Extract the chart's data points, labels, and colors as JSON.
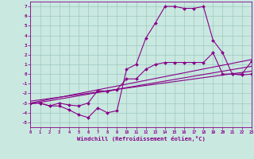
{
  "bg_color": "#c8e8e0",
  "grid_color": "#a0c8c0",
  "line_color": "#880088",
  "xlabel": "Windchill (Refroidissement éolien,°C)",
  "xlim": [
    0,
    23
  ],
  "ylim": [
    -5.5,
    7.5
  ],
  "yticks": [
    -5,
    -4,
    -3,
    -2,
    -1,
    0,
    1,
    2,
    3,
    4,
    5,
    6,
    7
  ],
  "xticks": [
    0,
    1,
    2,
    3,
    4,
    5,
    6,
    7,
    8,
    9,
    10,
    11,
    12,
    13,
    14,
    15,
    16,
    17,
    18,
    19,
    20,
    21,
    22,
    23
  ],
  "line1_x": [
    0,
    1,
    2,
    3,
    4,
    5,
    6,
    7,
    8,
    9,
    10,
    11,
    12,
    13,
    14,
    15,
    16,
    17,
    18,
    19,
    20,
    21,
    22,
    23
  ],
  "line1_y": [
    -3.0,
    -3.0,
    -3.3,
    -3.3,
    -3.7,
    -4.2,
    -4.5,
    -3.5,
    -4.0,
    -3.8,
    0.5,
    1.0,
    3.7,
    5.3,
    7.0,
    7.0,
    6.8,
    6.8,
    7.0,
    3.5,
    2.2,
    0.0,
    -0.1,
    0.0
  ],
  "line2_x": [
    0,
    1,
    2,
    3,
    4,
    5,
    6,
    7,
    8,
    9,
    10,
    11,
    12,
    13,
    14,
    15,
    16,
    17,
    18,
    19,
    20,
    21,
    22,
    23
  ],
  "line2_y": [
    -3.0,
    -3.0,
    -3.3,
    -3.0,
    -3.2,
    -3.3,
    -3.0,
    -1.7,
    -1.8,
    -1.6,
    -0.5,
    -0.5,
    0.5,
    1.0,
    1.2,
    1.2,
    1.2,
    1.2,
    1.2,
    2.2,
    0.0,
    -0.0,
    -0.0,
    1.3
  ],
  "line3_x": [
    0,
    23
  ],
  "line3_y": [
    -3.0,
    1.5
  ],
  "line4_x": [
    0,
    23
  ],
  "line4_y": [
    -2.8,
    0.3
  ],
  "line5_x": [
    0,
    23
  ],
  "line5_y": [
    -3.1,
    0.8
  ]
}
